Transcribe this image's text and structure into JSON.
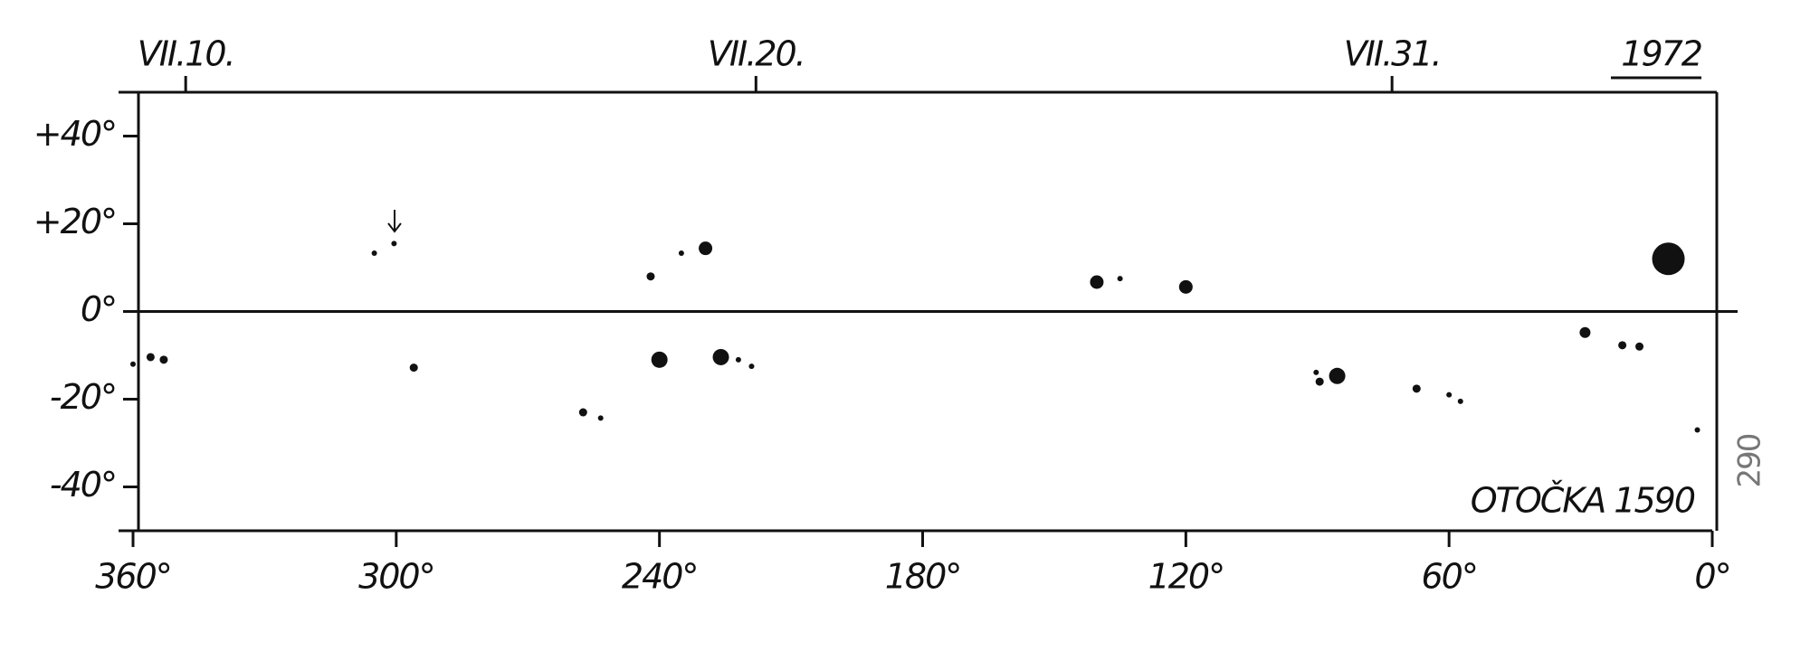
{
  "chart_data": {
    "type": "scatter",
    "year_label": "1972",
    "annotation": "OTOČKA 1590",
    "page_number": "290",
    "x": [
      360,
      356,
      353,
      305,
      300.5,
      296,
      242,
      235,
      229.5,
      240,
      226,
      222,
      219,
      257.4,
      253.4,
      140.3,
      135,
      120,
      90.3,
      89.5,
      85.5,
      67.4,
      60,
      57.4,
      29,
      20.5,
      16.6,
      10,
      3.4
    ],
    "values": [
      -12,
      -10.4,
      -11,
      13.3,
      15.5,
      -12.8,
      8,
      13.3,
      14.4,
      -11,
      -10.4,
      -11,
      -12.5,
      -23,
      -24.3,
      6.7,
      7.5,
      5.6,
      -13.9,
      -16,
      -14.7,
      -17.6,
      -19,
      -20.5,
      -4.8,
      -7.7,
      -8,
      12,
      -27
    ],
    "sizes": [
      1,
      1.5,
      1.5,
      1,
      1,
      1.5,
      1.5,
      1,
      2.5,
      3,
      3,
      1,
      1,
      1.5,
      1,
      2.5,
      1,
      2.5,
      1,
      1.5,
      3,
      1.5,
      1,
      1,
      2,
      1.5,
      1.5,
      6,
      1
    ],
    "color": "#111111",
    "xlim": [
      360,
      0
    ],
    "xticks": [
      {
        "value": 360,
        "label": "360°"
      },
      {
        "value": 300,
        "label": "300°"
      },
      {
        "value": 240,
        "label": "240°"
      },
      {
        "value": 180,
        "label": "180°"
      },
      {
        "value": 120,
        "label": "120°"
      },
      {
        "value": 60,
        "label": "60°"
      },
      {
        "value": 0,
        "label": "0°"
      }
    ],
    "x2ticks": [
      {
        "value": 348,
        "label": "VII.10."
      },
      {
        "value": 218,
        "label": "VII.20."
      },
      {
        "value": 73,
        "label": "VII.31."
      }
    ],
    "ylim": [
      -50,
      50
    ],
    "yticks": [
      {
        "value": 40,
        "label": "+40°"
      },
      {
        "value": 20,
        "label": "+20°"
      },
      {
        "value": 0,
        "label": "0°"
      },
      {
        "value": -20,
        "label": "-20°"
      },
      {
        "value": -40,
        "label": "-40°"
      }
    ]
  }
}
